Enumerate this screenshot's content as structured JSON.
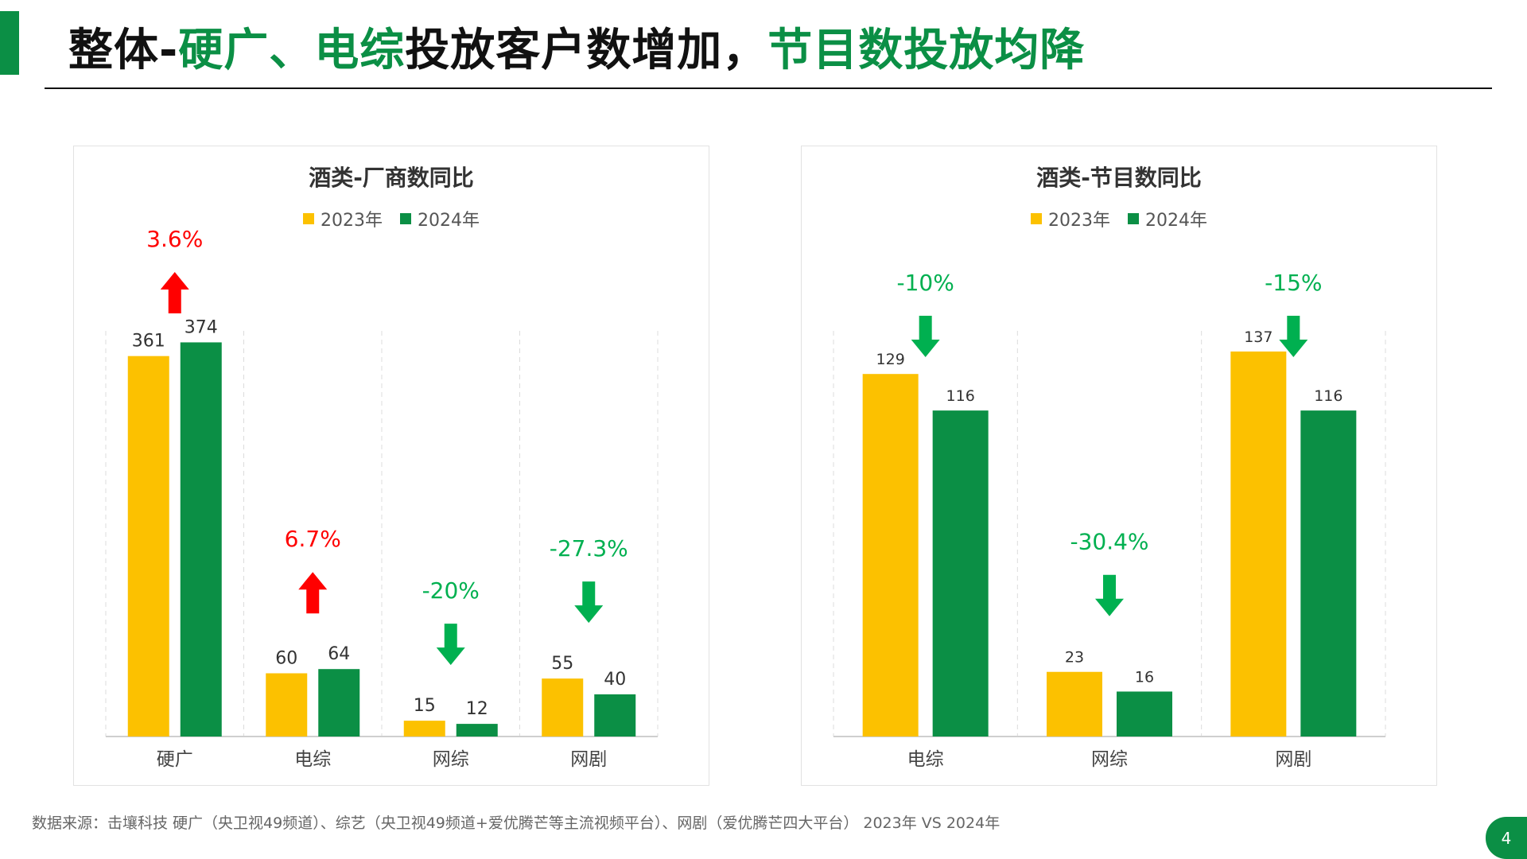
{
  "header": {
    "title_part1": "整体-",
    "title_part2": "硬广、电综",
    "title_part3": "投放客户数增加，",
    "title_part4": "节目数投放均降"
  },
  "colors": {
    "accent": "#0b8f45",
    "series_2023": "#fcc100",
    "series_2024": "#0b8f45",
    "up": "#ff0000",
    "down": "#00b050"
  },
  "chart_data": [
    {
      "type": "bar",
      "title": "酒类-厂商数同比",
      "categories": [
        "硬广",
        "电综",
        "网综",
        "网剧"
      ],
      "series": [
        {
          "name": "2023年",
          "values": [
            361,
            60,
            15,
            55
          ]
        },
        {
          "name": "2024年",
          "values": [
            374,
            64,
            12,
            40
          ]
        }
      ],
      "annotations": [
        {
          "category": "硬广",
          "text": "3.6%",
          "direction": "up"
        },
        {
          "category": "电综",
          "text": "6.7%",
          "direction": "up"
        },
        {
          "category": "网综",
          "text": "-20%",
          "direction": "down"
        },
        {
          "category": "网剧",
          "text": "-27.3%",
          "direction": "down"
        }
      ],
      "ylim": [
        0,
        400
      ],
      "legend_position": "top",
      "grid": false
    },
    {
      "type": "bar",
      "title": "酒类-节目数同比",
      "categories": [
        "电综",
        "网综",
        "网剧"
      ],
      "series": [
        {
          "name": "2023年",
          "values": [
            129,
            23,
            137
          ]
        },
        {
          "name": "2024年",
          "values": [
            116,
            16,
            116
          ]
        }
      ],
      "annotations": [
        {
          "category": "电综",
          "text": "-10%",
          "direction": "down"
        },
        {
          "category": "网综",
          "text": "-30.4%",
          "direction": "down"
        },
        {
          "category": "网剧",
          "text": "-15%",
          "direction": "down"
        }
      ],
      "ylim": [
        0,
        150
      ],
      "legend_position": "top",
      "grid": false
    }
  ],
  "footer": {
    "source": "数据来源：击壤科技 硬广（央卫视49频道）、综艺（央卫视49频道+爱优腾芒等主流视频平台）、网剧（爱优腾芒四大平台） 2023年 VS 2024年",
    "page_number": "4"
  }
}
